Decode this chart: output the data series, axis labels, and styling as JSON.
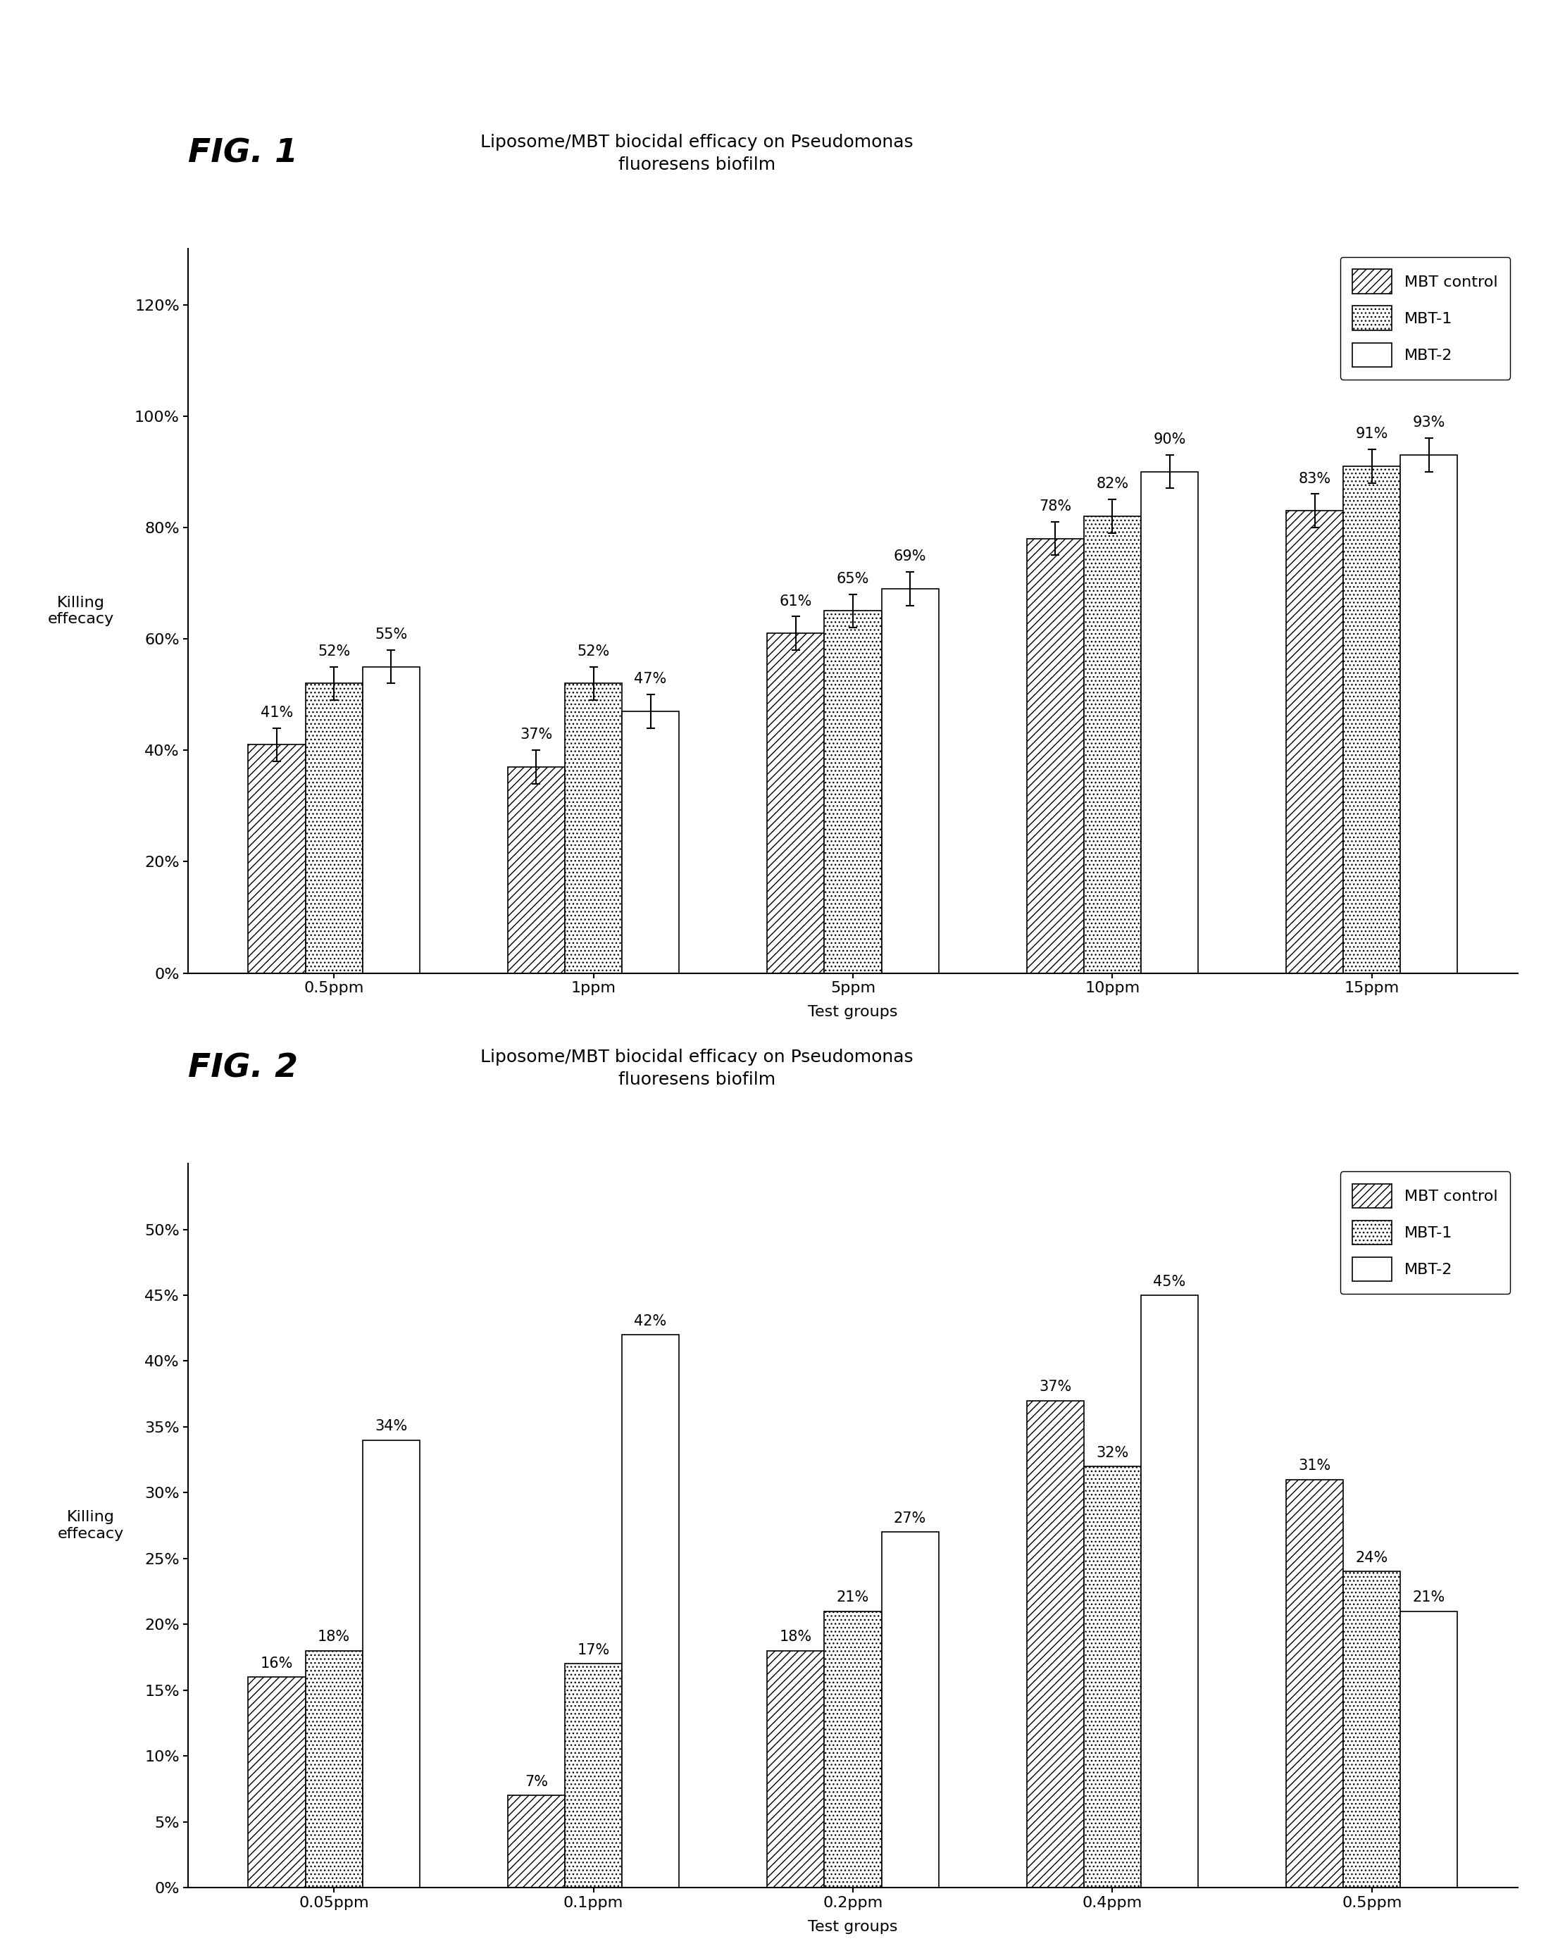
{
  "fig1": {
    "title": "Liposome/MBT biocidal efficacy on Pseudomonas\nfluoresens biofilm",
    "fig_label": "FIG. 1",
    "categories": [
      "0.5ppm",
      "1ppm",
      "5ppm",
      "10ppm",
      "15ppm"
    ],
    "mbt_control": [
      41,
      37,
      61,
      78,
      83
    ],
    "mbt1": [
      52,
      52,
      65,
      82,
      91
    ],
    "mbt2": [
      55,
      47,
      69,
      90,
      93
    ],
    "mbt_control_err": [
      3,
      3,
      3,
      3,
      3
    ],
    "mbt1_err": [
      3,
      3,
      3,
      3,
      3
    ],
    "mbt2_err": [
      3,
      3,
      3,
      3,
      3
    ],
    "ylabel": "Killing\neffecacy",
    "xlabel": "Test groups",
    "ylim": 130,
    "yticks": [
      0,
      20,
      40,
      60,
      80,
      100,
      120
    ],
    "ytick_labels": [
      "0%",
      "20%",
      "40%",
      "60%",
      "80%",
      "100%",
      "120%"
    ]
  },
  "fig2": {
    "title": "Liposome/MBT biocidal efficacy on Pseudomonas\nfluoresens biofilm",
    "fig_label": "FIG. 2",
    "categories": [
      "0.05ppm",
      "0.1ppm",
      "0.2ppm",
      "0.4ppm",
      "0.5ppm"
    ],
    "mbt_control": [
      16,
      7,
      18,
      37,
      31
    ],
    "mbt1": [
      18,
      17,
      21,
      32,
      24
    ],
    "mbt2": [
      34,
      42,
      27,
      45,
      21
    ],
    "mbt_control_err": [
      0,
      0,
      0,
      0,
      0
    ],
    "mbt1_err": [
      0,
      0,
      0,
      0,
      0
    ],
    "mbt2_err": [
      0,
      0,
      0,
      0,
      0
    ],
    "ylabel": "Killing\neffecacy",
    "xlabel": "Test groups",
    "ylim": 55,
    "yticks": [
      0,
      5,
      10,
      15,
      20,
      25,
      30,
      35,
      40,
      45,
      50
    ],
    "ytick_labels": [
      "0%",
      "5%",
      "10%",
      "15%",
      "20%",
      "25%",
      "30%",
      "35%",
      "40%",
      "45%",
      "50%"
    ]
  },
  "legend_labels": [
    "MBT control",
    "MBT-1",
    "MBT-2"
  ],
  "hatch_control": "///",
  "hatch_mbt1": "...",
  "hatch_mbt2": "",
  "bar_width": 0.22,
  "background_color": "#ffffff",
  "bar_edge_color": "#000000",
  "bar_face_color": "#ffffff",
  "label_fontsize": 16,
  "title_fontsize": 18,
  "tick_fontsize": 16,
  "annotation_fontsize": 15,
  "ylabel_fontsize": 16,
  "figlabel_fontsize": 34
}
